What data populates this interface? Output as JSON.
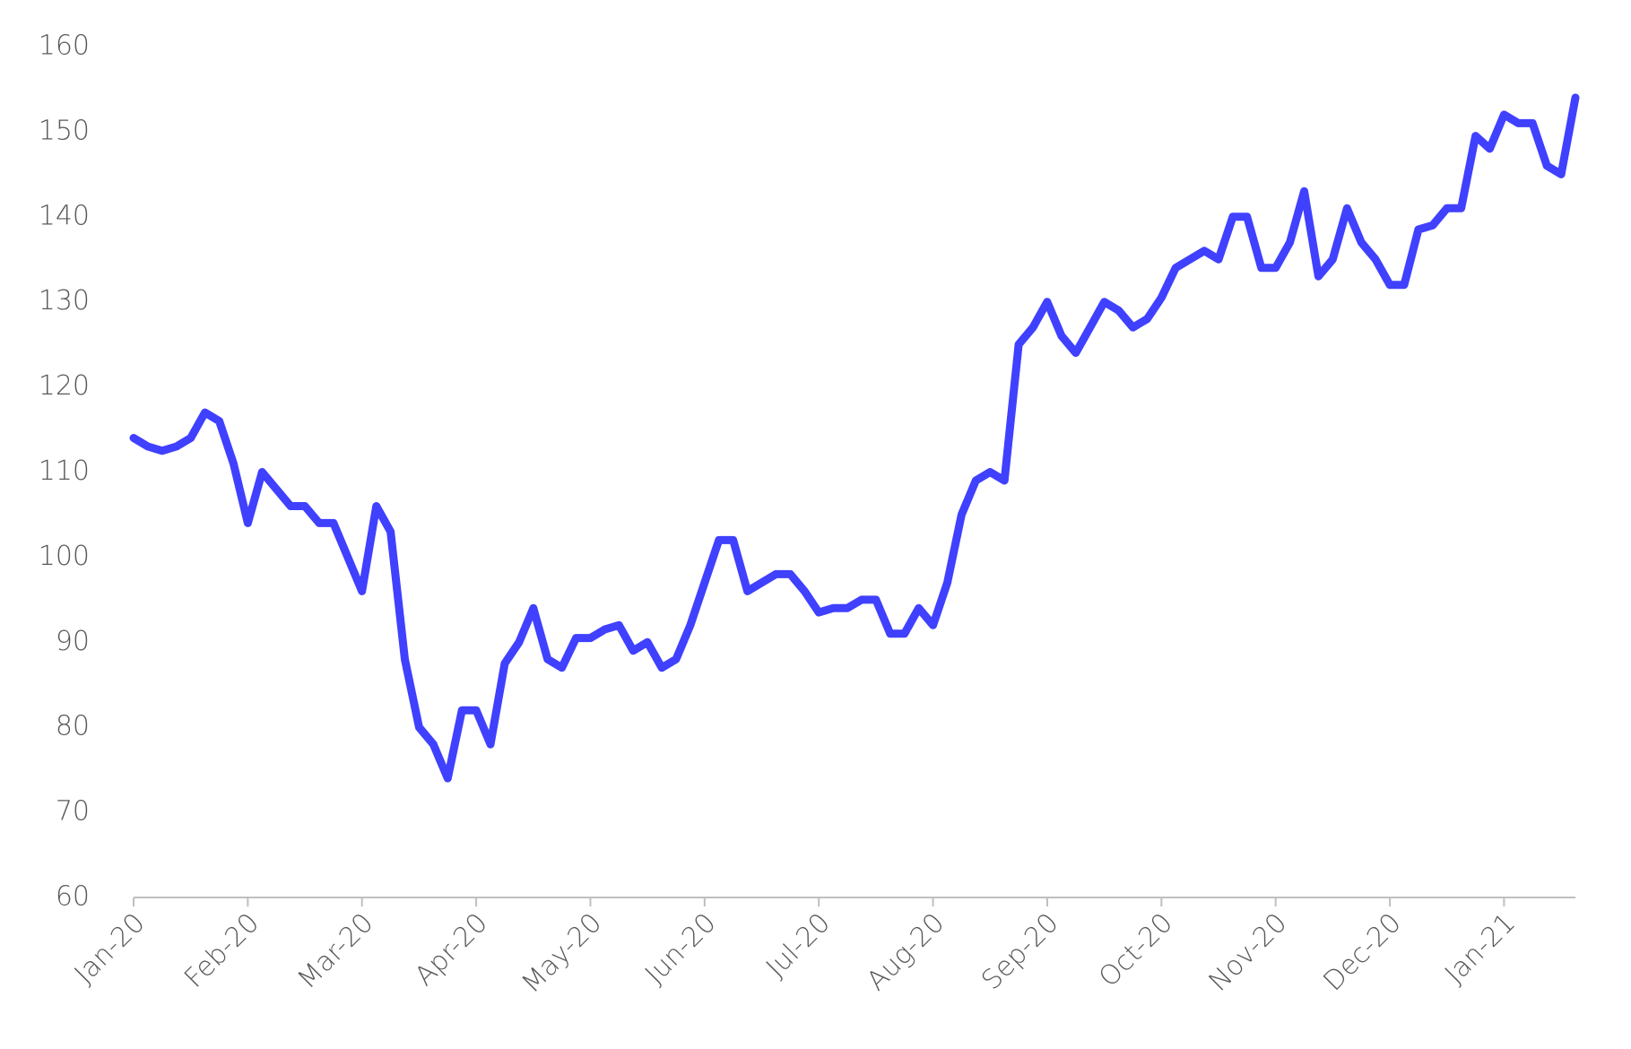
{
  "chart_data": {
    "type": "line",
    "categories": [
      "Jan-20",
      null,
      null,
      null,
      null,
      null,
      null,
      null,
      "Feb-20",
      null,
      null,
      null,
      null,
      null,
      null,
      null,
      "Mar-20",
      null,
      null,
      null,
      null,
      null,
      null,
      null,
      "Apr-20",
      null,
      null,
      null,
      null,
      null,
      null,
      null,
      "May-20",
      null,
      null,
      null,
      null,
      null,
      null,
      null,
      "Jun-20",
      null,
      null,
      null,
      null,
      null,
      null,
      null,
      "Jul-20",
      null,
      null,
      null,
      null,
      null,
      null,
      null,
      "Aug-20",
      null,
      null,
      null,
      null,
      null,
      null,
      null,
      "Sep-20",
      null,
      null,
      null,
      null,
      null,
      null,
      null,
      "Oct-20",
      null,
      null,
      null,
      null,
      null,
      null,
      null,
      "Nov-20",
      null,
      null,
      null,
      null,
      null,
      null,
      null,
      "Dec-20",
      null,
      null,
      null,
      null,
      null,
      null,
      null,
      "Jan-21",
      null,
      null,
      null,
      null,
      null
    ],
    "series": [
      {
        "color": "#4040ff",
        "values": [
          114,
          113,
          112.5,
          113,
          114,
          117,
          116,
          111,
          104,
          110,
          108,
          106,
          106,
          104,
          104,
          100,
          96,
          106,
          103,
          88,
          80,
          78,
          74,
          82,
          82,
          78,
          87.5,
          90,
          94,
          88,
          87,
          90.5,
          90.5,
          91.5,
          92,
          89,
          90,
          87,
          88,
          92,
          97,
          102,
          102,
          96,
          97,
          98,
          98,
          96,
          93.5,
          94,
          94,
          95,
          95,
          91,
          91,
          94,
          92,
          97,
          105,
          109,
          110,
          109,
          125,
          127,
          130,
          126,
          124,
          127,
          130,
          129,
          127,
          128,
          130.5,
          134,
          135,
          136,
          135,
          140,
          140,
          134,
          134,
          137,
          143,
          133,
          135,
          141,
          137,
          135,
          132,
          132,
          138.5,
          139,
          141,
          141,
          149.5,
          148,
          152,
          151,
          151,
          146,
          145,
          154
        ]
      }
    ],
    "ylim": [
      60,
      160
    ],
    "yticks": [
      60,
      70,
      80,
      90,
      100,
      110,
      120,
      130,
      140,
      150,
      160
    ],
    "grid": false
  }
}
